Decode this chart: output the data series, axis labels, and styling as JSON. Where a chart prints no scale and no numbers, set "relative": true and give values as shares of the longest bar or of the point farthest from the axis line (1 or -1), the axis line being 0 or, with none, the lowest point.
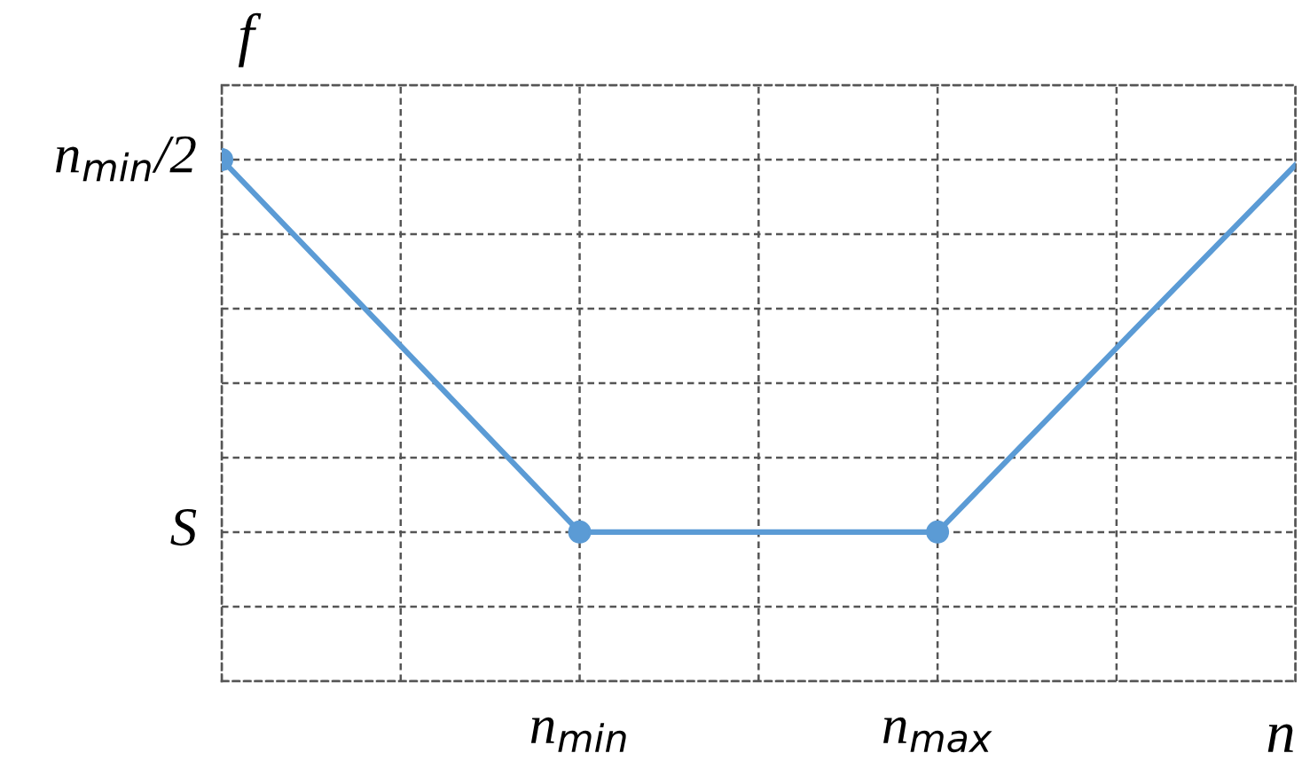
{
  "chart_data": {
    "type": "line",
    "xlabel": "n",
    "ylabel": "f",
    "relative": true,
    "categories": [
      null,
      null,
      "n$_{min}$",
      null,
      "n$_{max}$",
      null,
      null
    ],
    "series": [
      {
        "color": "#5b9bd5",
        "marker": "none",
        "values": [
          1,
          0.643,
          0.286,
          0.286,
          0.286,
          0.639,
          0.99
        ]
      },
      {
        "type": "scatter",
        "color": "#5b9bd5",
        "values": [
          1,
          null,
          0.286,
          null,
          0.286,
          null,
          null
        ]
      }
    ],
    "annotations": [
      "S",
      "n$_{min}$/2"
    ],
    "grid": true,
    "marker": "circle",
    "line_style": "solid",
    "legend": false
  }
}
